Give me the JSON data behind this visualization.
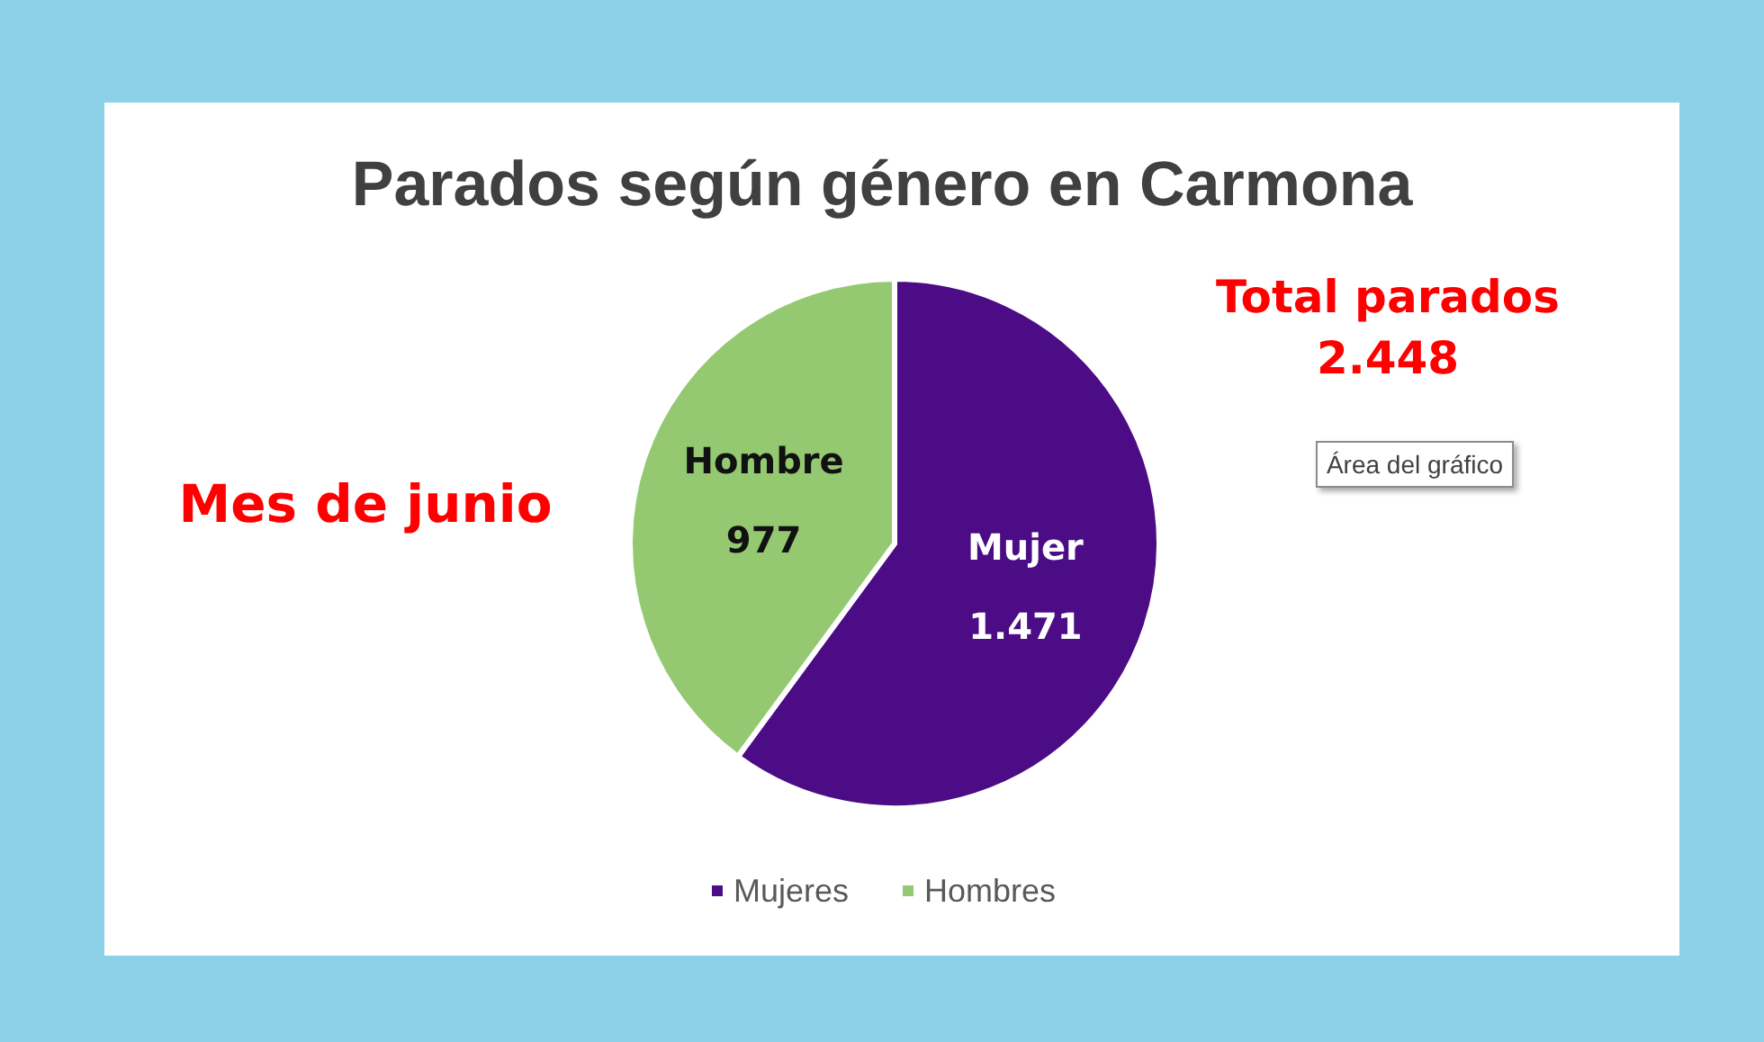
{
  "chart_data": {
    "type": "pie",
    "title": "Parados según género en Carmona",
    "categories": [
      "Mujeres",
      "Hombres"
    ],
    "values": [
      1471,
      977
    ],
    "colors": [
      "#4b0c85",
      "#94c971"
    ],
    "value_labels": [
      "Mujer\n1.471",
      "Hombre\n977"
    ],
    "legend": "bottom",
    "annotations": [
      "Total parados\n2.448",
      "Mes de junio",
      "Área del gráfico"
    ]
  }
}
